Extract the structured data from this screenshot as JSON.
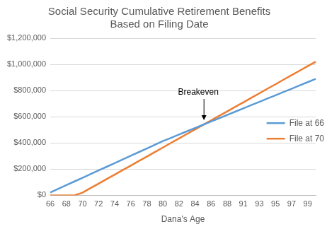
{
  "chart_data": {
    "type": "line",
    "title": "Social Security Cumulative Retirement Benefits\nBased on Filing Date",
    "x_label": "Dana's Age",
    "categories": [
      66,
      null,
      68,
      null,
      70,
      null,
      72,
      null,
      74,
      null,
      76,
      null,
      78,
      null,
      80,
      null,
      82,
      null,
      84,
      null,
      86,
      null,
      88,
      null,
      91,
      null,
      93,
      null,
      95,
      null,
      97,
      null,
      99,
      null
    ],
    "series": [
      {
        "name": "File at 66",
        "color": "#5b9bd5",
        "values": [
          22000,
          50000,
          78000,
          106000,
          134000,
          162000,
          190000,
          218000,
          246000,
          274000,
          302000,
          330000,
          358000,
          386000,
          414000,
          439000,
          464000,
          489000,
          514000,
          539000,
          564000,
          589000,
          614000,
          639000,
          664000,
          689000,
          714000,
          739000,
          764000,
          789000,
          814000,
          839000,
          864000,
          889000
        ]
      },
      {
        "name": "File at 70",
        "color": "#ed7d31",
        "values": [
          0,
          0,
          0,
          0,
          20000,
          55000,
          89000,
          124000,
          158000,
          193000,
          227000,
          262000,
          296000,
          331000,
          365000,
          400000,
          434000,
          469000,
          503000,
          538000,
          572000,
          607000,
          641000,
          676000,
          710000,
          745000,
          779000,
          814000,
          848000,
          883000,
          917000,
          952000,
          986000,
          1020000
        ]
      }
    ],
    "annotations": [
      {
        "text": "Breakeven"
      }
    ],
    "ylim": [
      0,
      1200000
    ],
    "yticks": [
      {
        "value": 0,
        "label": "$0"
      },
      {
        "value": 200000,
        "label": "$200,000"
      },
      {
        "value": 400000,
        "label": "$400,000"
      },
      {
        "value": 600000,
        "label": "$600,000"
      },
      {
        "value": 800000,
        "label": "$800,000"
      },
      {
        "value": 1000000,
        "label": "$1,000,000"
      },
      {
        "value": 1200000,
        "label": "$1,200,000"
      }
    ],
    "grid": "y",
    "legend": "right"
  }
}
